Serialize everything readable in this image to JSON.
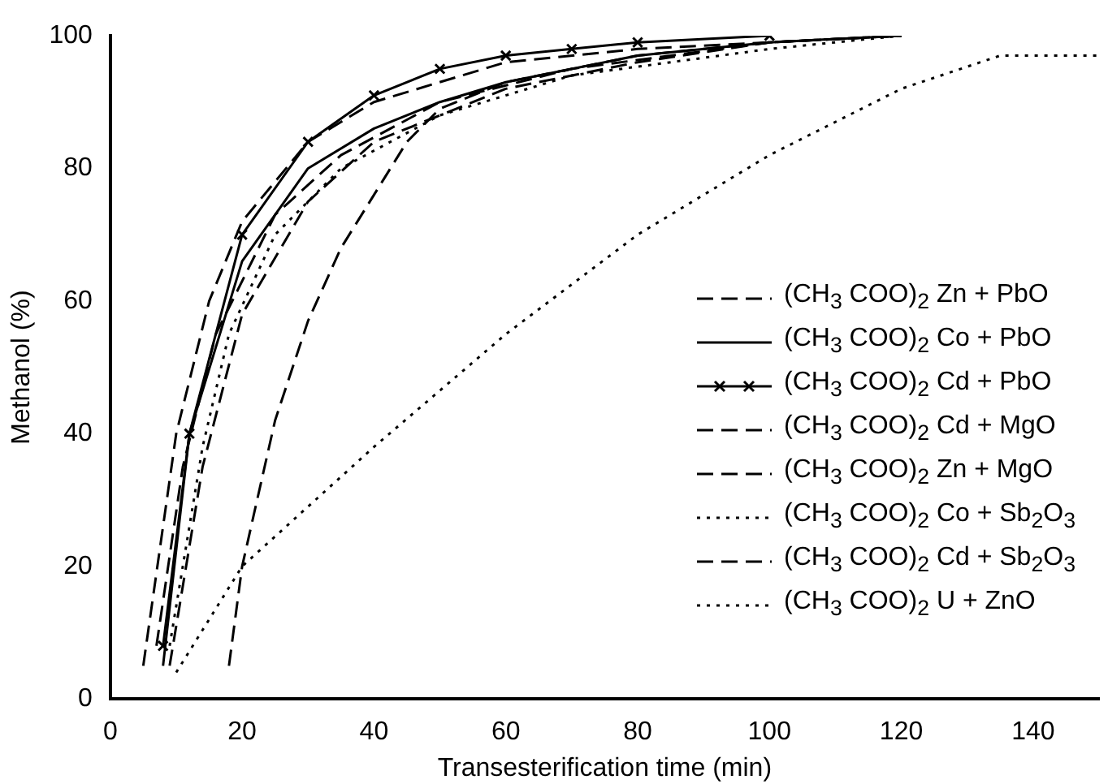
{
  "chart_data": {
    "type": "line",
    "xlabel": "Transesterification time (min)",
    "ylabel": "Methanol (%)",
    "xlim": [
      0,
      150
    ],
    "ylim": [
      0,
      100
    ],
    "xticks": [
      0,
      20,
      40,
      60,
      80,
      100,
      120,
      140
    ],
    "yticks": [
      0,
      20,
      40,
      60,
      80,
      100
    ],
    "grid": false,
    "legend": "right",
    "series": [
      {
        "name": "(CH$_{3}$ COO)$_{2}$ Zn + PbO",
        "color": "#000000",
        "line_style": "dashed",
        "x": [
          5,
          10,
          15,
          20,
          30,
          40,
          60,
          80,
          100,
          120
        ],
        "values": [
          5,
          40,
          60,
          72,
          84,
          90,
          96,
          98,
          99,
          100
        ]
      },
      {
        "name": "(CH$_{3}$ COO)$_{2}$ Co + PbO",
        "color": "#000000",
        "line_style": "solid",
        "x": [
          8,
          12,
          20,
          30,
          40,
          50,
          60,
          80,
          100,
          120
        ],
        "values": [
          5,
          40,
          66,
          80,
          86,
          90,
          93,
          97,
          99,
          100
        ]
      },
      {
        "name": "(CH$_{3}$ COO)$_{2}$ Cd + PbO",
        "color": "#000000",
        "line_style": "solid",
        "marker": "cross",
        "x": [
          8,
          12,
          20,
          30,
          40,
          50,
          60,
          70,
          80,
          100
        ],
        "values": [
          8,
          40,
          70,
          84,
          91,
          95,
          97,
          98,
          99,
          100
        ]
      },
      {
        "name": "(CH$_{3}$ COO)$_{2}$ Cd + MgO",
        "color": "#000000",
        "line_style": "dashed",
        "x": [
          7,
          11,
          16,
          25,
          35,
          50,
          70,
          100,
          120
        ],
        "values": [
          8,
          35,
          55,
          73,
          82,
          90,
          95,
          99,
          100
        ]
      },
      {
        "name": "(CH$_{3}$ COO)$_{2}$ Zn + MgO",
        "color": "#000000",
        "line_style": "dashed",
        "x": [
          9,
          14,
          20,
          30,
          40,
          60,
          80,
          100
        ],
        "values": [
          5,
          35,
          58,
          75,
          84,
          92,
          96,
          99
        ]
      },
      {
        "name": "(CH$_{3}$ COO)$_{2}$ Co + Sb$_{2}$O$_{3}$",
        "color": "#000000",
        "line_style": "dotted",
        "x": [
          9,
          14,
          18,
          25,
          35,
          50,
          70,
          100,
          120
        ],
        "values": [
          8,
          38,
          55,
          70,
          80,
          88,
          94,
          98,
          100
        ]
      },
      {
        "name": "(CH$_{3}$ COO)$_{2}$ Cd + Sb$_{2}$O$_{3}$",
        "color": "#000000",
        "line_style": "dashed",
        "x": [
          18,
          20,
          25,
          30,
          35,
          40,
          45,
          50,
          60,
          80,
          100,
          120
        ],
        "values": [
          5,
          20,
          42,
          57,
          68,
          76,
          84,
          89,
          93,
          97,
          99,
          100
        ]
      },
      {
        "name": "(CH$_{3}$ COO)$_{2}$ U + ZnO",
        "color": "#000000",
        "line_style": "dotted",
        "x": [
          10,
          20,
          40,
          60,
          80,
          100,
          120,
          135,
          150
        ],
        "values": [
          4,
          20,
          38,
          55,
          70,
          82,
          92,
          97,
          97
        ]
      }
    ]
  }
}
